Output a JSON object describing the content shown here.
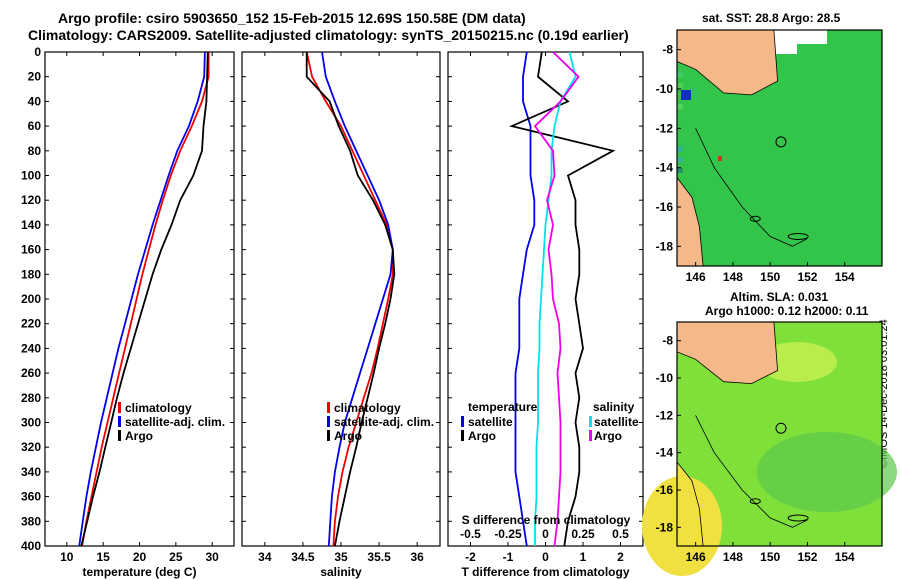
{
  "header": {
    "title_line1": "Argo profile: csiro 5903650_152 15-Feb-2015 12.69S 150.58E (DM data)",
    "title_line2": "Climatology: CARS2009. Satellite-adjusted climatology: synTS_20150215.nc (0.19d earlier)"
  },
  "credit": "©IMOS 14-Dec-2018 03:01:24",
  "colors": {
    "climatology": "#ee0000",
    "satellite": "#0000ee",
    "argo": "#000000",
    "temp_diff_argo": "#ee00ee",
    "sal_diff_satellite": "#00e0ee",
    "land": "#f5b888",
    "sst_water": "#33c44a",
    "sla_water": "#7fe03a"
  },
  "chart_data": [
    {
      "id": "temperature",
      "type": "line",
      "xlabel": "temperature (deg C)",
      "ylabel": "",
      "xlim": [
        7,
        33
      ],
      "ylim": [
        0,
        400
      ],
      "xticks": [
        10,
        15,
        20,
        25,
        30
      ],
      "yticks": [
        0,
        20,
        40,
        60,
        80,
        100,
        120,
        140,
        160,
        180,
        200,
        220,
        240,
        260,
        280,
        300,
        320,
        340,
        360,
        380,
        400
      ],
      "y_inverted": true,
      "legend": [
        "climatology",
        "satellite-adj. clim.",
        "Argo"
      ],
      "depth": [
        0,
        20,
        40,
        60,
        80,
        100,
        120,
        140,
        160,
        180,
        200,
        220,
        240,
        260,
        280,
        300,
        320,
        340,
        360,
        380,
        400
      ],
      "series": [
        {
          "name": "climatology",
          "values": [
            29.5,
            29.5,
            28.6,
            27.2,
            25.6,
            24.3,
            23.2,
            22.2,
            21.3,
            20.4,
            19.6,
            18.8,
            18.0,
            17.2,
            16.4,
            15.6,
            14.8,
            14.1,
            13.4,
            12.7,
            12.1
          ]
        },
        {
          "name": "satellite-adj. clim.",
          "values": [
            29.0,
            28.9,
            28.0,
            26.8,
            25.2,
            24.0,
            22.9,
            21.8,
            20.8,
            19.8,
            18.9,
            18.0,
            17.1,
            16.3,
            15.5,
            14.7,
            14.0,
            13.3,
            12.7,
            12.2,
            11.7
          ]
        },
        {
          "name": "Argo",
          "values": [
            29.4,
            29.3,
            29.2,
            28.8,
            28.6,
            27.4,
            25.6,
            24.4,
            23.0,
            21.8,
            20.8,
            19.8,
            18.8,
            17.8,
            16.9,
            16.1,
            15.3,
            14.5,
            13.6,
            12.8,
            12.0
          ]
        }
      ]
    },
    {
      "id": "salinity",
      "type": "line",
      "xlabel": "salinity",
      "ylabel": "",
      "xlim": [
        33.7,
        36.3
      ],
      "ylim": [
        0,
        400
      ],
      "xticks": [
        34,
        34.5,
        35,
        35.5,
        36
      ],
      "y_inverted": true,
      "legend": [
        "climatology",
        "satellite-adj. clim.",
        "Argo"
      ],
      "depth": [
        0,
        20,
        40,
        60,
        80,
        100,
        120,
        140,
        160,
        180,
        200,
        220,
        240,
        260,
        280,
        300,
        320,
        340,
        360,
        380,
        400
      ],
      "series": [
        {
          "name": "climatology",
          "values": [
            34.55,
            34.62,
            34.8,
            35.0,
            35.15,
            35.3,
            35.45,
            35.6,
            35.68,
            35.68,
            35.62,
            35.55,
            35.48,
            35.4,
            35.3,
            35.2,
            35.1,
            35.02,
            34.96,
            34.92,
            34.9
          ]
        },
        {
          "name": "satellite-adj. clim.",
          "values": [
            34.75,
            34.8,
            34.92,
            35.05,
            35.2,
            35.35,
            35.5,
            35.62,
            35.68,
            35.65,
            35.55,
            35.45,
            35.35,
            35.25,
            35.15,
            35.05,
            34.98,
            34.92,
            34.88,
            34.86,
            34.84
          ]
        },
        {
          "name": "Argo",
          "values": [
            34.55,
            34.55,
            34.85,
            34.97,
            35.12,
            35.22,
            35.42,
            35.58,
            35.68,
            35.7,
            35.65,
            35.58,
            35.5,
            35.43,
            35.35,
            35.27,
            35.2,
            35.12,
            35.05,
            34.98,
            34.92
          ]
        }
      ]
    },
    {
      "id": "difference",
      "type": "line",
      "xlabel": "T difference from climatology",
      "top_xlabel": "S difference from climatology",
      "xlim": [
        -2.6,
        2.6
      ],
      "top_xlim": [
        -0.65,
        0.65
      ],
      "ylim": [
        0,
        400
      ],
      "xticks": [
        -2,
        -1,
        0,
        1,
        2
      ],
      "top_xticks": [
        "-0.5",
        "-0.25",
        "0",
        "0.25",
        "0.5"
      ],
      "y_inverted": true,
      "legend_left_title": "temperature",
      "legend_right_title": "salinity",
      "legend_left": [
        "satellite",
        "Argo"
      ],
      "legend_right": [
        "satellite",
        "Argo"
      ],
      "depth": [
        0,
        20,
        40,
        60,
        80,
        100,
        120,
        140,
        160,
        180,
        200,
        220,
        240,
        260,
        280,
        300,
        320,
        340,
        360,
        380,
        400
      ],
      "series": [
        {
          "name": "temperature satellite",
          "values": [
            -0.5,
            -0.6,
            -0.6,
            -0.4,
            -0.4,
            -0.4,
            -0.3,
            -0.3,
            -0.5,
            -0.6,
            -0.7,
            -0.7,
            -0.7,
            -0.8,
            -0.8,
            -0.8,
            -0.8,
            -0.8,
            -0.7,
            -0.6,
            -0.5
          ]
        },
        {
          "name": "temperature Argo",
          "values": [
            -0.1,
            -0.2,
            0.6,
            -0.9,
            1.8,
            0.6,
            0.8,
            0.8,
            0.9,
            0.9,
            0.8,
            0.9,
            1.0,
            0.8,
            0.9,
            0.8,
            0.9,
            0.9,
            0.8,
            0.6,
            0.5
          ]
        },
        {
          "name": "salinity satellite",
          "values": [
            0.16,
            0.2,
            0.1,
            0.06,
            0.04,
            0.04,
            0.02,
            0.0,
            -0.01,
            -0.02,
            -0.03,
            -0.04,
            -0.04,
            -0.05,
            -0.05,
            -0.05,
            -0.06,
            -0.06,
            -0.06,
            -0.07,
            -0.07
          ]
        },
        {
          "name": "salinity Argo",
          "values": [
            0.05,
            0.22,
            0.1,
            -0.07,
            0.05,
            0.06,
            0.01,
            0.05,
            0.02,
            0.04,
            0.05,
            0.09,
            0.1,
            0.08,
            0.09,
            0.1,
            0.1,
            0.1,
            0.09,
            0.08,
            0.06
          ]
        }
      ]
    },
    {
      "id": "sst_map",
      "type": "heatmap",
      "title": "sat. SST: 28.8 Argo: 28.5",
      "xlim": [
        145,
        156
      ],
      "ylim": [
        -19,
        -7
      ],
      "xticks": [
        146,
        148,
        150,
        152,
        154
      ],
      "yticks": [
        -8,
        -10,
        -12,
        -14,
        -16,
        -18
      ],
      "argo_position": {
        "lon": 150.58,
        "lat": -12.69
      }
    },
    {
      "id": "sla_map",
      "type": "heatmap",
      "title": "Altim. SLA: 0.031",
      "subtitle": "Argo h1000: 0.12 h2000: 0.11",
      "xlim": [
        145,
        156
      ],
      "ylim": [
        -19,
        -7
      ],
      "xticks": [
        146,
        148,
        150,
        152,
        154
      ],
      "yticks": [
        -8,
        -10,
        -12,
        -14,
        -16,
        -18
      ],
      "argo_position": {
        "lon": 150.58,
        "lat": -12.69
      }
    }
  ]
}
